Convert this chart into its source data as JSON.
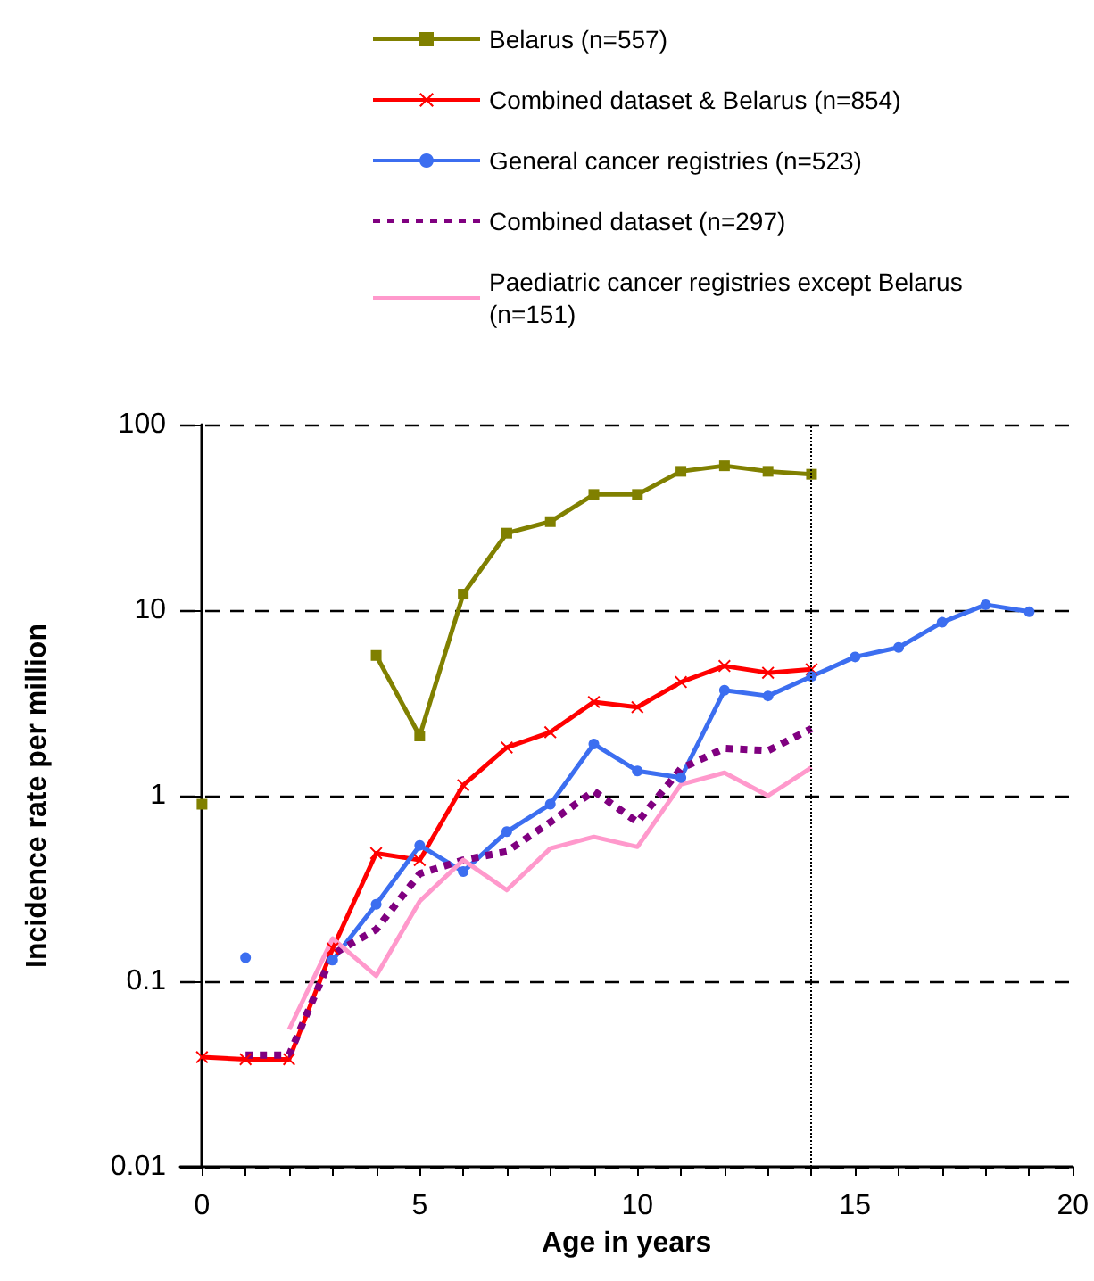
{
  "chart_data": {
    "type": "line",
    "xlabel": "Age in years",
    "ylabel": "Incidence rate per million",
    "x": [
      0,
      1,
      2,
      3,
      4,
      5,
      6,
      7,
      8,
      9,
      10,
      11,
      12,
      13,
      14,
      15,
      16,
      17,
      18,
      19
    ],
    "series": [
      {
        "name": "Belarus (n=557)",
        "color": "#808000",
        "marker": "square",
        "line_style": "solid",
        "values": [
          0.9,
          null,
          null,
          null,
          5.7,
          2.1,
          12.2,
          26,
          30,
          42,
          42,
          56,
          60,
          56,
          54,
          null,
          null,
          null,
          null,
          null
        ]
      },
      {
        "name": "Combined dataset & Belarus (n=854)",
        "color": "#ff0000",
        "marker": "cross",
        "line_style": "solid",
        "values": [
          0.039,
          0.038,
          0.038,
          0.15,
          0.49,
          0.45,
          1.14,
          1.82,
          2.2,
          3.2,
          3.0,
          4.1,
          5.0,
          4.6,
          4.8,
          null,
          null,
          null,
          null,
          null
        ]
      },
      {
        "name": "General cancer registries (n=523)",
        "color": "#3c6ef0",
        "marker": "circle",
        "line_style": "solid",
        "values": [
          null,
          0.134,
          null,
          0.13,
          0.26,
          0.54,
          0.39,
          0.64,
          0.9,
          1.9,
          1.36,
          1.25,
          3.7,
          3.45,
          4.4,
          5.6,
          6.3,
          8.6,
          10.7,
          9.8
        ]
      },
      {
        "name": "Combined dataset (n=297)",
        "color": "#800080",
        "marker": "none",
        "line_style": "dashed",
        "values": [
          null,
          0.04,
          0.04,
          0.14,
          0.19,
          0.38,
          0.45,
          0.5,
          0.72,
          1.06,
          0.72,
          1.4,
          1.8,
          1.75,
          2.3,
          null,
          null,
          null,
          null,
          null
        ]
      },
      {
        "name": "Paediatric cancer registries except Belarus (n=151)",
        "color": "#ff99cc",
        "marker": "none",
        "line_style": "solid",
        "values": [
          null,
          null,
          0.055,
          0.17,
          0.107,
          0.27,
          0.45,
          0.31,
          0.52,
          0.6,
          0.53,
          1.15,
          1.33,
          1.0,
          1.42,
          null,
          null,
          null,
          null,
          null
        ]
      }
    ],
    "log": "y",
    "xlim": [
      -0.5,
      20
    ],
    "ylim": [
      0.01,
      100
    ],
    "xticks": [
      0,
      {
        "value": 1,
        "label": null
      },
      {
        "value": 2,
        "label": null
      },
      {
        "value": 3,
        "label": null
      },
      {
        "value": 4,
        "label": null
      },
      5,
      {
        "value": 6,
        "label": null
      },
      {
        "value": 7,
        "label": null
      },
      {
        "value": 8,
        "label": null
      },
      {
        "value": 9,
        "label": null
      },
      10,
      {
        "value": 11,
        "label": null
      },
      {
        "value": 12,
        "label": null
      },
      {
        "value": 13,
        "label": null
      },
      {
        "value": 14,
        "label": null
      },
      15,
      {
        "value": 16,
        "label": null
      },
      {
        "value": 17,
        "label": null
      },
      {
        "value": 18,
        "label": null
      },
      {
        "value": 19,
        "label": null
      },
      20
    ],
    "yticks": [
      0.01,
      0.1,
      1,
      10,
      100
    ],
    "grid": "y",
    "legend": "top",
    "ref_lines": [
      {
        "axis": "x",
        "value": 14,
        "line_style": "dotted",
        "color": "#000000"
      }
    ]
  }
}
